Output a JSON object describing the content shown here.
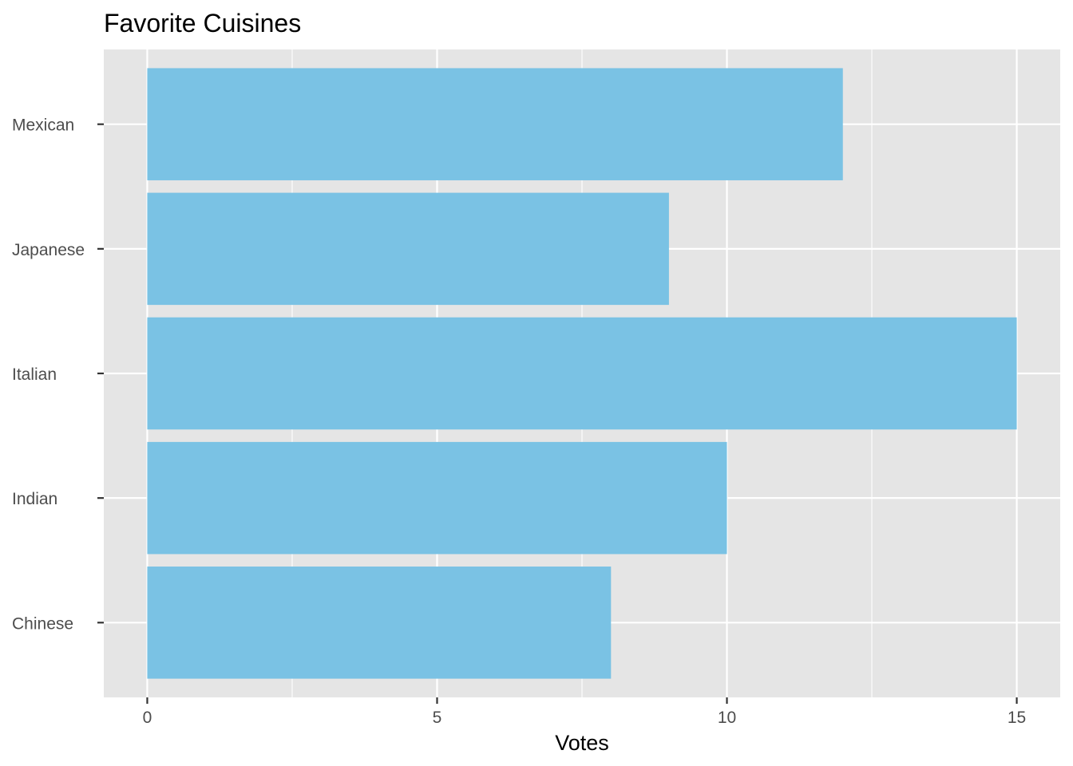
{
  "chart_data": {
    "type": "bar",
    "orientation": "horizontal",
    "title": "Favorite Cuisines",
    "xlabel": "Votes",
    "ylabel": "",
    "categories": [
      "Chinese",
      "Indian",
      "Italian",
      "Japanese",
      "Mexican"
    ],
    "values": [
      8,
      10,
      15,
      9,
      12
    ],
    "xlim": [
      -0.75,
      15.75
    ],
    "xticks": [
      0,
      5,
      10,
      15
    ],
    "xtick_labels": [
      "0",
      "5",
      "10",
      "15"
    ],
    "grid": true,
    "legend": "none",
    "colors": {
      "bar": "#7AC2E4",
      "panel": "#E5E5E5",
      "grid": "#FFFFFF",
      "tick_text": "#4D4D4D",
      "title_text": "#000000"
    }
  }
}
